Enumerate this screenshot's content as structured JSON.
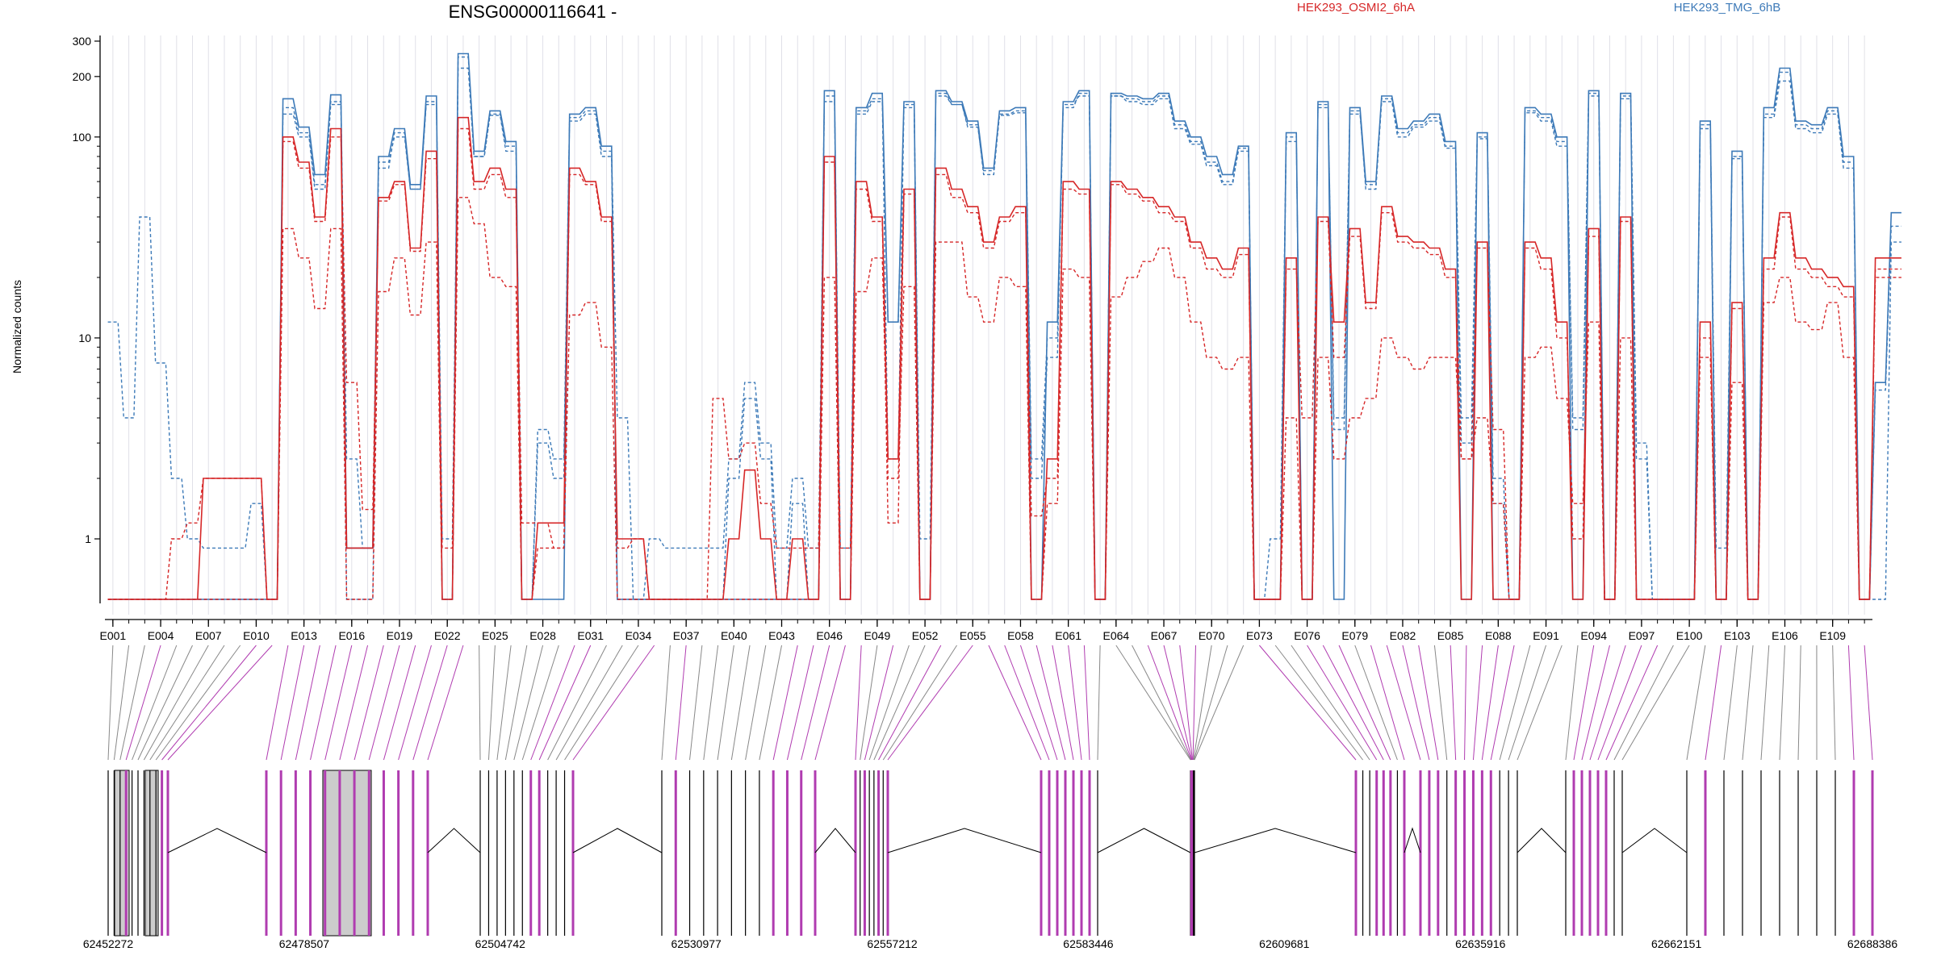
{
  "title": "ENSG00000116641 -",
  "ylabel": "Normalized counts",
  "legend": [
    {
      "label": "HEK293_OSMI2_6hA",
      "color": "#d62728"
    },
    {
      "label": "HEK293_TMG_6hB",
      "color": "#3d7ab8"
    }
  ],
  "colors": {
    "osmi": "#d62728",
    "tmg": "#3d7ab8",
    "significant_exon": "#b03cb0",
    "exon_fill": "#cccccc",
    "grid": "#e0e0e8"
  },
  "chart_data": {
    "type": "line",
    "title": "ENSG00000116641 -",
    "ylabel": "Normalized counts",
    "xlabel": "",
    "yscale": "log",
    "ylim": [
      0.5,
      320
    ],
    "yticks": [
      1,
      10,
      100,
      200,
      300
    ],
    "x_tick_labels": [
      "E001",
      "E004",
      "E007",
      "E010",
      "E013",
      "E016",
      "E019",
      "E022",
      "E025",
      "E028",
      "E031",
      "E034",
      "E037",
      "E040",
      "E043",
      "E046",
      "E049",
      "E052",
      "E055",
      "E058",
      "E061",
      "E064",
      "E067",
      "E070",
      "E073",
      "E076",
      "E079",
      "E082",
      "E085",
      "E088",
      "E091",
      "E094",
      "E097",
      "E100",
      "E103",
      "E106",
      "E109"
    ],
    "n_exons": 111,
    "series": [
      {
        "name": "HEK293_TMG_6hB",
        "style": "solid",
        "values": [
          0.5,
          0.5,
          0.5,
          0.5,
          0.5,
          0.5,
          0.5,
          0.5,
          0.5,
          0.5,
          0.5,
          155,
          112,
          65,
          162,
          0.9,
          0.9,
          80,
          110,
          58,
          160,
          0.5,
          260,
          85,
          135,
          95,
          0.5,
          0.5,
          0.5,
          130,
          140,
          90,
          0.5,
          0.5,
          0.5,
          0.5,
          0.5,
          0.5,
          0.5,
          0.5,
          0.5,
          0.5,
          0.5,
          0.5,
          0.5,
          170,
          0.5,
          140,
          165,
          12,
          150,
          0.5,
          170,
          150,
          120,
          70,
          135,
          140,
          0.5,
          12,
          150,
          170,
          0.5,
          165,
          160,
          155,
          165,
          120,
          100,
          80,
          65,
          90,
          0.5,
          0.5,
          105,
          0.5,
          150,
          0.5,
          140,
          60,
          160,
          110,
          120,
          130,
          95,
          0.5,
          105,
          0.5,
          0.5,
          140,
          130,
          100,
          0.5,
          170,
          0.5,
          165,
          0.5,
          0.5,
          0.5,
          0.5,
          120,
          0.5,
          85,
          0.5,
          140,
          220,
          120,
          115,
          140,
          80,
          0.5,
          6,
          42
        ]
      },
      {
        "name": "HEK293_TMG_6hB",
        "style": "dashed",
        "values": [
          12,
          4,
          40,
          7.5,
          2,
          1,
          0.9,
          0.9,
          0.9,
          1.5,
          0.5,
          140,
          105,
          58,
          150,
          2.5,
          0.9,
          75,
          100,
          55,
          150,
          1,
          220,
          80,
          130,
          90,
          0.5,
          3.5,
          2.5,
          125,
          135,
          85,
          4,
          0.5,
          1,
          0.9,
          0.9,
          0.9,
          0.9,
          2.5,
          6,
          3,
          0.9,
          2,
          0.9,
          160,
          0.9,
          135,
          155,
          12,
          140,
          1,
          160,
          145,
          115,
          65,
          130,
          135,
          2.5,
          10,
          145,
          160,
          0.5,
          160,
          155,
          150,
          160,
          115,
          95,
          75,
          60,
          85,
          0.5,
          1,
          100,
          0.5,
          140,
          4,
          135,
          55,
          155,
          105,
          115,
          125,
          90,
          4,
          100,
          2,
          0.5,
          135,
          125,
          95,
          4,
          165,
          0.5,
          160,
          3,
          0.5,
          0.5,
          0.5,
          115,
          0.9,
          80,
          0.5,
          130,
          210,
          115,
          110,
          135,
          75,
          0.5,
          5.5,
          36
        ]
      },
      {
        "name": "HEK293_TMG_6hB",
        "style": "dashed",
        "values": [
          0.5,
          0.5,
          0.5,
          0.5,
          0.5,
          0.5,
          0.5,
          0.5,
          0.5,
          0.5,
          0.5,
          130,
          100,
          55,
          145,
          0.5,
          0.5,
          70,
          105,
          55,
          145,
          0.5,
          250,
          80,
          128,
          85,
          0.5,
          3,
          2,
          120,
          130,
          80,
          0.5,
          0.5,
          0.5,
          0.5,
          0.5,
          0.5,
          0.5,
          2,
          5,
          2.5,
          0.5,
          1.5,
          0.5,
          150,
          0.5,
          130,
          150,
          2.5,
          145,
          0.5,
          165,
          145,
          112,
          68,
          128,
          132,
          2,
          8,
          140,
          165,
          0.5,
          160,
          150,
          145,
          155,
          110,
          92,
          72,
          58,
          88,
          0.5,
          0.5,
          95,
          0.5,
          145,
          3.5,
          130,
          58,
          150,
          100,
          112,
          120,
          88,
          3,
          98,
          1.5,
          0.5,
          132,
          120,
          90,
          3.5,
          160,
          0.5,
          155,
          2.5,
          0.5,
          0.5,
          0.5,
          110,
          0.5,
          78,
          0.5,
          125,
          190,
          110,
          105,
          130,
          70,
          0.5,
          0.5,
          30
        ]
      },
      {
        "name": "HEK293_OSMI2_6hA",
        "style": "solid",
        "values": [
          0.5,
          0.5,
          0.5,
          0.5,
          0.5,
          0.5,
          2,
          2,
          2,
          2,
          0.5,
          100,
          75,
          40,
          110,
          0.9,
          0.9,
          50,
          60,
          28,
          85,
          0.5,
          125,
          60,
          70,
          55,
          0.5,
          1.2,
          1.2,
          70,
          60,
          40,
          1,
          1,
          0.5,
          0.5,
          0.5,
          0.5,
          0.5,
          1,
          2.2,
          1,
          0.5,
          1,
          0.5,
          80,
          0.5,
          60,
          40,
          2.5,
          55,
          0.5,
          70,
          55,
          45,
          30,
          40,
          45,
          0.5,
          2.5,
          60,
          55,
          0.5,
          60,
          55,
          50,
          45,
          40,
          30,
          25,
          22,
          28,
          0.5,
          0.5,
          25,
          0.5,
          40,
          12,
          35,
          15,
          45,
          32,
          30,
          28,
          22,
          0.5,
          30,
          0.5,
          0.5,
          30,
          25,
          12,
          0.5,
          35,
          0.5,
          40,
          0.5,
          0.5,
          0.5,
          0.5,
          12,
          0.5,
          15,
          0.5,
          25,
          42,
          25,
          22,
          20,
          18,
          0.5,
          25,
          25
        ]
      },
      {
        "name": "HEK293_OSMI2_6hA",
        "style": "dashed",
        "values": [
          0.5,
          0.5,
          0.5,
          0.5,
          1,
          1.2,
          2,
          2,
          2,
          2,
          0.5,
          95,
          70,
          38,
          100,
          6,
          1.4,
          48,
          58,
          27,
          78,
          0.9,
          110,
          55,
          65,
          50,
          1.2,
          1.2,
          0.9,
          65,
          58,
          38,
          0.9,
          1,
          0.5,
          0.5,
          0.5,
          0.5,
          5,
          2.5,
          3,
          1.5,
          0.9,
          0.9,
          0.9,
          75,
          0.9,
          55,
          38,
          1.2,
          52,
          0.5,
          65,
          50,
          42,
          28,
          38,
          42,
          1.3,
          2,
          55,
          52,
          0.5,
          58,
          52,
          48,
          42,
          38,
          28,
          22,
          20,
          26,
          0.5,
          0.5,
          22,
          4,
          38,
          8,
          32,
          14,
          42,
          30,
          28,
          26,
          20,
          2.5,
          28,
          3.5,
          0.5,
          28,
          22,
          10,
          1,
          32,
          0.5,
          38,
          0.5,
          0.5,
          0.5,
          0.5,
          10,
          0.5,
          14,
          0.5,
          22,
          40,
          22,
          20,
          18,
          16,
          0.5,
          22,
          22
        ]
      },
      {
        "name": "HEK293_OSMI2_6hA",
        "style": "dashed",
        "values": [
          0.5,
          0.5,
          0.5,
          0.5,
          0.5,
          0.5,
          0.5,
          0.5,
          0.5,
          0.5,
          0.5,
          35,
          25,
          14,
          35,
          0.5,
          0.5,
          17,
          25,
          13,
          30,
          0.5,
          50,
          37,
          20,
          18,
          0.5,
          0.9,
          0.9,
          13,
          15,
          9,
          0.5,
          0.5,
          0.5,
          0.5,
          0.5,
          0.5,
          0.5,
          0.5,
          0.5,
          0.5,
          0.5,
          0.5,
          0.5,
          20,
          0.5,
          17,
          25,
          2,
          18,
          0.5,
          30,
          30,
          16,
          12,
          20,
          18,
          0.5,
          1.5,
          22,
          20,
          0.5,
          16,
          20,
          24,
          28,
          20,
          12,
          8,
          7,
          8,
          0.5,
          0.5,
          4,
          0.5,
          8,
          2.5,
          4,
          5,
          10,
          8,
          7,
          8,
          8,
          2.5,
          4,
          1.5,
          0.5,
          8,
          9,
          5,
          1.5,
          12,
          0.5,
          10,
          0.5,
          0.5,
          0.5,
          0.5,
          8,
          0.5,
          6,
          0.5,
          15,
          20,
          12,
          11,
          15,
          8,
          0.5,
          20,
          20
        ]
      }
    ],
    "genomic_axis": {
      "tick_labels": [
        "62452272",
        "62478507",
        "62504742",
        "62530977",
        "62557212",
        "62583446",
        "62609681",
        "62635916",
        "62662151",
        "62688386"
      ]
    },
    "significant_exons": [
      "E004",
      "E010",
      "E011",
      "E012",
      "E013",
      "E014",
      "E015",
      "E016",
      "E017",
      "E018",
      "E019",
      "E020",
      "E021",
      "E022",
      "E023",
      "E030",
      "E031",
      "E035",
      "E037",
      "E044",
      "E045",
      "E046",
      "E047",
      "E048",
      "E050",
      "E053",
      "E055",
      "E056",
      "E057",
      "E058",
      "E059",
      "E060",
      "E061",
      "E062",
      "E066",
      "E067",
      "E068",
      "E069",
      "E073",
      "E076",
      "E077",
      "E078",
      "E080",
      "E081",
      "E082",
      "E083",
      "E085",
      "E086",
      "E087",
      "E088",
      "E089",
      "E094",
      "E095",
      "E096",
      "E097",
      "E098",
      "E102",
      "E110",
      "E111"
    ]
  }
}
